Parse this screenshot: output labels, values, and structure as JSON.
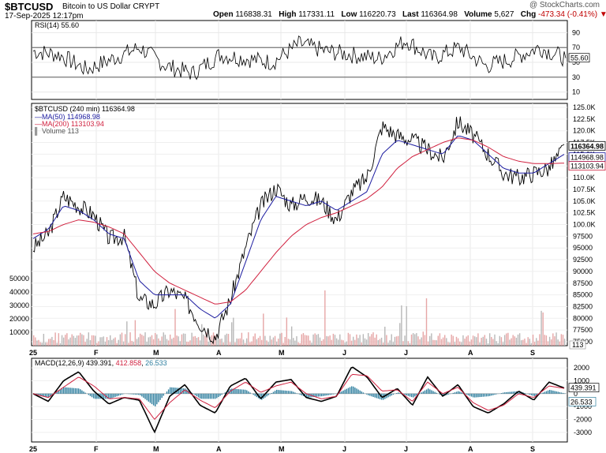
{
  "header": {
    "symbol": "$BTCUSD",
    "description": "Bitcoin to US Dollar  CRYPT",
    "date": "17-Sep-2025 12:17pm",
    "open_label": "Open",
    "open": "116838.31",
    "high_label": "High",
    "high": "117331.11",
    "low_label": "Low",
    "low": "116220.73",
    "last_label": "Last",
    "last": "116364.98",
    "volume_label": "Volume",
    "volume": "5,627",
    "chg_label": "Chg",
    "chg": "-473.34 (-0.41%)",
    "watermark": "@ StockCharts.com"
  },
  "rsi_legend": "RSI(14) 55.60",
  "price_legend": {
    "main": "$BTCUSD (240 min) 116364.98",
    "ma50": "MA(50) 114968.98",
    "ma200": "MA(200) 113103.94",
    "volume": "Volume 113"
  },
  "macd_legend": {
    "prefix": "MACD(12,26,9) ",
    "macd": "439.391",
    "signal": "412.858",
    "hist": "26.533"
  },
  "colors": {
    "price": "#000000",
    "ma50": "#1c1ca0",
    "ma200": "#d0213f",
    "volume": "#e0a0a0",
    "histogram": "#2f7f9f",
    "macd": "#000000",
    "signal": "#d0213f"
  },
  "chart_data": [
    {
      "type": "line",
      "title": "RSI(14)",
      "ylim": [
        0,
        100
      ],
      "y_ticks": [
        "90",
        "70",
        "50",
        "30",
        "10"
      ],
      "reference_lines": [
        70,
        30
      ],
      "last_value": "55.60",
      "series": [
        {
          "name": "RSI(14)",
          "x_months": [
            0,
            0.5,
            1,
            1.5,
            2,
            2.5,
            3,
            3.5,
            4,
            4.5,
            5,
            5.5,
            6,
            6.5,
            7,
            7.5,
            8,
            8.5,
            9,
            9.5,
            10
          ],
          "values": [
            65,
            60,
            40,
            55,
            70,
            45,
            35,
            60,
            55,
            50,
            75,
            65,
            60,
            55,
            80,
            55,
            70,
            45,
            55,
            70,
            55.6
          ]
        }
      ]
    },
    {
      "type": "line",
      "title": "$BTCUSD (240 min)",
      "x_tick_labels": [
        "25",
        "F",
        "M",
        "A",
        "M",
        "J",
        "J",
        "A",
        "S"
      ],
      "y_ticks": [
        "125.0K",
        "122.5K",
        "120.0K",
        "117.5K",
        "115.0K",
        "112.5K",
        "110.0K",
        "107.5K",
        "105.0K",
        "102.5K",
        "100.0K",
        "97500",
        "95000",
        "92500",
        "90000",
        "87500",
        "85000",
        "82500",
        "80000",
        "77500",
        "75000"
      ],
      "ylim": [
        75000,
        125000
      ],
      "series": [
        {
          "name": "$BTCUSD",
          "values": [
            95000,
            98000,
            106000,
            104000,
            102000,
            97000,
            97500,
            84000,
            83000,
            86000,
            84000,
            79000,
            76000,
            84000,
            95000,
            104000,
            108000,
            104000,
            106000,
            105000,
            101000,
            107000,
            110000,
            121000,
            119000,
            118000,
            116000,
            114000,
            122000,
            119000,
            115000,
            111000,
            110000,
            111000,
            112000,
            116365
          ]
        },
        {
          "name": "MA(50)",
          "values": [
            97000,
            99000,
            104000,
            103000,
            101000,
            98000,
            97000,
            88000,
            85000,
            85000,
            85000,
            82000,
            80000,
            83000,
            92000,
            101000,
            106000,
            105000,
            104000,
            105000,
            103000,
            105000,
            107000,
            115000,
            118000,
            117000,
            116000,
            115000,
            119000,
            118000,
            115000,
            112000,
            111000,
            111000,
            113000,
            114969
          ]
        },
        {
          "name": "MA(200)",
          "values": [
            98000,
            98500,
            100000,
            101000,
            100500,
            99500,
            98000,
            94000,
            90000,
            87500,
            86000,
            84500,
            83000,
            83500,
            86000,
            90000,
            94000,
            97500,
            100000,
            101500,
            102500,
            104000,
            105500,
            108000,
            112000,
            114500,
            116000,
            117500,
            118500,
            118000,
            116500,
            114500,
            113500,
            113000,
            113000,
            113104
          ]
        }
      ],
      "volume": {
        "ylim": [
          0,
          60000
        ],
        "y_ticks": [
          "50000",
          "40000",
          "30000",
          "20000",
          "10000"
        ],
        "last_value": "113"
      }
    },
    {
      "type": "line",
      "title": "MACD(12,26,9)",
      "ylim": [
        -3500,
        2500
      ],
      "y_ticks": [
        "2000",
        "1000",
        "0",
        "-1000",
        "-2000",
        "-3000"
      ],
      "series": [
        {
          "name": "MACD",
          "values": [
            0,
            -600,
            1000,
            1700,
            200,
            -800,
            -300,
            -500,
            -3000,
            -200,
            700,
            -900,
            -1500,
            600,
            1200,
            -400,
            900,
            1100,
            -300,
            -600,
            -200,
            2100,
            1300,
            -300,
            400,
            -900,
            1300,
            -200,
            700,
            -1000,
            -1500,
            -800,
            200,
            -500,
            900,
            439.391
          ]
        },
        {
          "name": "Signal",
          "values": [
            0,
            -300,
            500,
            1300,
            600,
            -400,
            -300,
            -400,
            -2000,
            -700,
            300,
            -500,
            -1100,
            200,
            900,
            100,
            600,
            900,
            0,
            -400,
            -200,
            1500,
            1400,
            200,
            300,
            -600,
            900,
            0,
            500,
            -700,
            -1300,
            -900,
            0,
            -300,
            600,
            412.858
          ]
        }
      ]
    }
  ]
}
